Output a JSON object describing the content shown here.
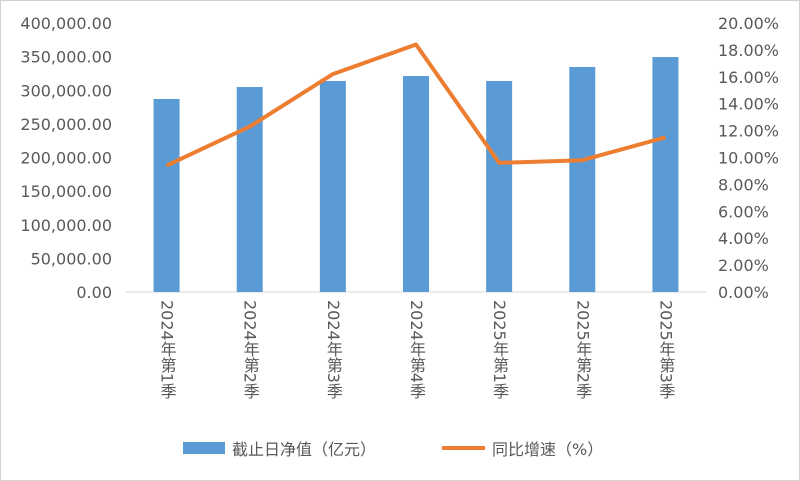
{
  "chart_data": {
    "type": "bar+line",
    "categories": [
      "2024年第1季",
      "2024年第2季",
      "2024年第3季",
      "2024年第4季",
      "2025年第1季",
      "2025年第2季",
      "2025年第3季"
    ],
    "series": [
      {
        "name": "截止日净值（亿元）",
        "type": "bar",
        "axis": "left",
        "color": "#5b9bd5",
        "values": [
          287000,
          304800,
          313800,
          321200,
          313800,
          334600,
          349400
        ]
      },
      {
        "name": "同比增速（%）",
        "type": "line",
        "axis": "right",
        "color": "#ed7d31",
        "values": [
          9.4,
          12.3,
          16.2,
          18.4,
          9.6,
          9.8,
          11.5
        ]
      }
    ],
    "left_axis": {
      "ylim": [
        0,
        400000
      ],
      "ticks": [
        "0.00",
        "50,000.00",
        "100,000.00",
        "150,000.00",
        "200,000.00",
        "250,000.00",
        "300,000.00",
        "350,000.00",
        "400,000.00"
      ]
    },
    "right_axis": {
      "ylim": [
        0,
        20
      ],
      "ticks": [
        "0.00%",
        "2.00%",
        "4.00%",
        "6.00%",
        "8.00%",
        "10.00%",
        "12.00%",
        "14.00%",
        "16.00%",
        "18.00%",
        "20.00%"
      ]
    },
    "grid": false,
    "legend": "bottom"
  }
}
